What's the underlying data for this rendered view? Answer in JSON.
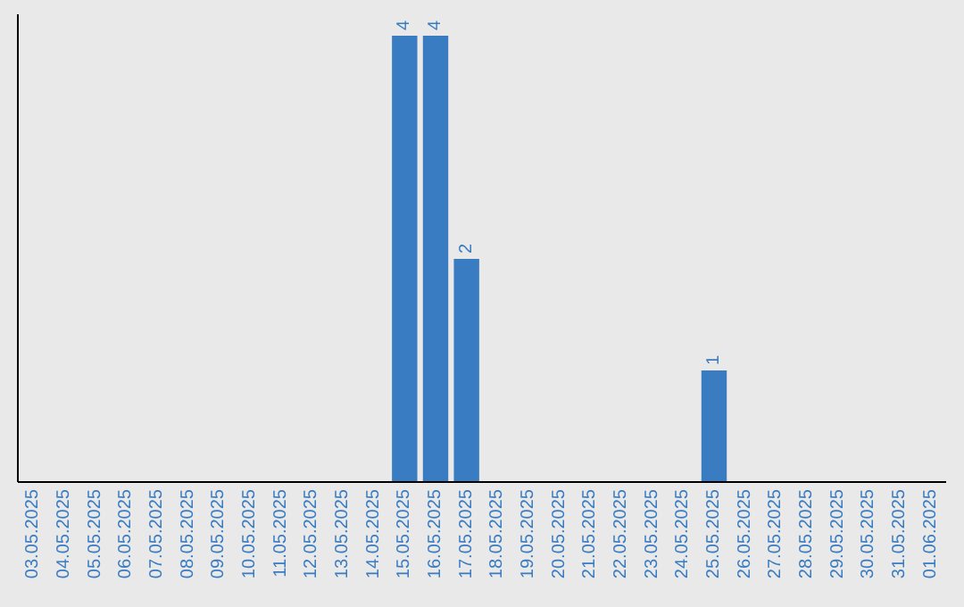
{
  "chart_data": {
    "type": "bar",
    "categories": [
      "03.05.2025",
      "04.05.2025",
      "05.05.2025",
      "06.05.2025",
      "07.05.2025",
      "08.05.2025",
      "09.05.2025",
      "10.05.2025",
      "11.05.2025",
      "12.05.2025",
      "13.05.2025",
      "14.05.2025",
      "15.05.2025",
      "16.05.2025",
      "17.05.2025",
      "18.05.2025",
      "19.05.2025",
      "20.05.2025",
      "21.05.2025",
      "22.05.2025",
      "23.05.2025",
      "24.05.2025",
      "25.05.2025",
      "26.05.2025",
      "27.05.2025",
      "28.05.2025",
      "29.05.2025",
      "30.05.2025",
      "31.05.2025",
      "01.06.2025"
    ],
    "values": [
      null,
      null,
      null,
      null,
      null,
      null,
      null,
      null,
      null,
      null,
      null,
      null,
      4,
      4,
      2,
      null,
      null,
      null,
      null,
      null,
      null,
      null,
      1,
      null,
      null,
      null,
      null,
      null,
      null,
      null
    ],
    "color": "#3a7cc2",
    "data_labels": true
  }
}
